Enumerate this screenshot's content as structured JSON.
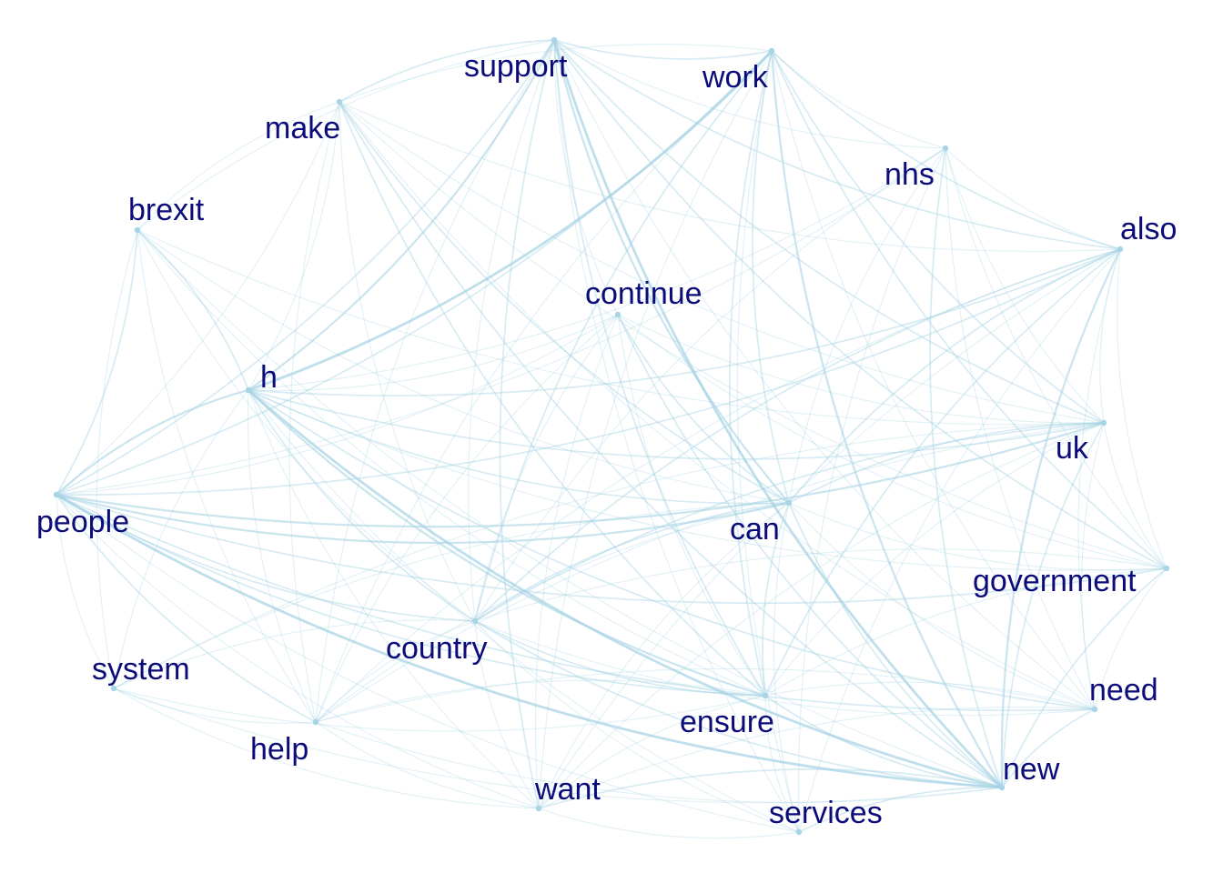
{
  "style": {
    "node_color": "#a9d4e6",
    "edge_color": "#a3d1e3",
    "label_color": "#0b0b7a",
    "background": "#ffffff"
  },
  "nodes": [
    {
      "id": "support",
      "label": "support"
    },
    {
      "id": "work",
      "label": "work"
    },
    {
      "id": "make",
      "label": "make"
    },
    {
      "id": "nhs",
      "label": "nhs"
    },
    {
      "id": "brexit",
      "label": "brexit"
    },
    {
      "id": "also",
      "label": "also"
    },
    {
      "id": "continue",
      "label": "continue"
    },
    {
      "id": "h",
      "label": "h"
    },
    {
      "id": "uk",
      "label": "uk"
    },
    {
      "id": "people",
      "label": "people"
    },
    {
      "id": "can",
      "label": "can"
    },
    {
      "id": "government",
      "label": "government"
    },
    {
      "id": "country",
      "label": "country"
    },
    {
      "id": "system",
      "label": "system"
    },
    {
      "id": "need",
      "label": "need"
    },
    {
      "id": "ensure",
      "label": "ensure"
    },
    {
      "id": "help",
      "label": "help"
    },
    {
      "id": "new",
      "label": "new"
    },
    {
      "id": "want",
      "label": "want"
    },
    {
      "id": "services",
      "label": "services"
    }
  ],
  "edges": [
    [
      "h",
      "work",
      4
    ],
    [
      "h",
      "support",
      3
    ],
    [
      "h",
      "new",
      4
    ],
    [
      "h",
      "people",
      3
    ],
    [
      "h",
      "ensure",
      3
    ],
    [
      "h",
      "can",
      2
    ],
    [
      "h",
      "uk",
      2
    ],
    [
      "h",
      "brexit",
      2
    ],
    [
      "h",
      "country",
      2
    ],
    [
      "h",
      "also",
      2
    ],
    [
      "h",
      "need",
      2
    ],
    [
      "h",
      "government",
      1
    ],
    [
      "h",
      "help",
      1
    ],
    [
      "h",
      "want",
      1
    ],
    [
      "h",
      "services",
      1
    ],
    [
      "h",
      "make",
      1
    ],
    [
      "h",
      "nhs",
      1
    ],
    [
      "h",
      "continue",
      1
    ],
    [
      "h",
      "system",
      1
    ],
    [
      "people",
      "new",
      4
    ],
    [
      "people",
      "can",
      3
    ],
    [
      "people",
      "uk",
      3
    ],
    [
      "people",
      "support",
      2
    ],
    [
      "people",
      "work",
      2
    ],
    [
      "people",
      "ensure",
      2
    ],
    [
      "people",
      "country",
      2
    ],
    [
      "people",
      "also",
      2
    ],
    [
      "people",
      "government",
      2
    ],
    [
      "people",
      "help",
      2
    ],
    [
      "people",
      "need",
      2
    ],
    [
      "people",
      "brexit",
      2
    ],
    [
      "people",
      "system",
      1
    ],
    [
      "people",
      "want",
      1
    ],
    [
      "people",
      "make",
      1
    ],
    [
      "people",
      "continue",
      1
    ],
    [
      "people",
      "nhs",
      1
    ],
    [
      "people",
      "services",
      1
    ],
    [
      "support",
      "new",
      4
    ],
    [
      "support",
      "can",
      3
    ],
    [
      "support",
      "ensure",
      2
    ],
    [
      "support",
      "make",
      2
    ],
    [
      "support",
      "work",
      2
    ],
    [
      "support",
      "want",
      2
    ],
    [
      "support",
      "uk",
      2
    ],
    [
      "support",
      "also",
      2
    ],
    [
      "support",
      "government",
      2
    ],
    [
      "support",
      "country",
      1
    ],
    [
      "support",
      "need",
      1
    ],
    [
      "support",
      "help",
      1
    ],
    [
      "support",
      "brexit",
      1
    ],
    [
      "support",
      "nhs",
      1
    ],
    [
      "support",
      "services",
      1
    ],
    [
      "support",
      "continue",
      1
    ],
    [
      "work",
      "new",
      3
    ],
    [
      "work",
      "can",
      2
    ],
    [
      "work",
      "country",
      2
    ],
    [
      "work",
      "uk",
      2
    ],
    [
      "work",
      "also",
      2
    ],
    [
      "work",
      "government",
      2
    ],
    [
      "work",
      "ensure",
      2
    ],
    [
      "work",
      "services",
      1
    ],
    [
      "work",
      "need",
      1
    ],
    [
      "work",
      "help",
      1
    ],
    [
      "work",
      "nhs",
      1
    ],
    [
      "work",
      "want",
      1
    ],
    [
      "work",
      "make",
      1
    ],
    [
      "make",
      "new",
      2
    ],
    [
      "make",
      "can",
      2
    ],
    [
      "make",
      "ensure",
      2
    ],
    [
      "make",
      "brexit",
      1
    ],
    [
      "make",
      "uk",
      1
    ],
    [
      "make",
      "country",
      1
    ],
    [
      "make",
      "also",
      1
    ],
    [
      "make",
      "help",
      1
    ],
    [
      "make",
      "need",
      1
    ],
    [
      "make",
      "government",
      1
    ],
    [
      "nhs",
      "new",
      2
    ],
    [
      "nhs",
      "can",
      1
    ],
    [
      "nhs",
      "also",
      1
    ],
    [
      "nhs",
      "uk",
      1
    ],
    [
      "nhs",
      "services",
      1
    ],
    [
      "nhs",
      "need",
      1
    ],
    [
      "nhs",
      "government",
      1
    ],
    [
      "nhs",
      "country",
      1
    ],
    [
      "brexit",
      "new",
      1
    ],
    [
      "brexit",
      "country",
      1
    ],
    [
      "brexit",
      "can",
      1
    ],
    [
      "brexit",
      "system",
      1
    ],
    [
      "brexit",
      "help",
      1
    ],
    [
      "brexit",
      "uk",
      1
    ],
    [
      "brexit",
      "ensure",
      1
    ],
    [
      "also",
      "new",
      3
    ],
    [
      "also",
      "can",
      2
    ],
    [
      "also",
      "ensure",
      2
    ],
    [
      "also",
      "country",
      2
    ],
    [
      "also",
      "need",
      1
    ],
    [
      "also",
      "uk",
      1
    ],
    [
      "also",
      "government",
      1
    ],
    [
      "also",
      "help",
      1
    ],
    [
      "also",
      "want",
      1
    ],
    [
      "also",
      "services",
      1
    ],
    [
      "continue",
      "can",
      2
    ],
    [
      "continue",
      "new",
      2
    ],
    [
      "continue",
      "country",
      1
    ],
    [
      "continue",
      "ensure",
      1
    ],
    [
      "continue",
      "want",
      1
    ],
    [
      "continue",
      "uk",
      1
    ],
    [
      "continue",
      "government",
      1
    ],
    [
      "continue",
      "help",
      1
    ],
    [
      "uk",
      "new",
      2
    ],
    [
      "uk",
      "can",
      2
    ],
    [
      "uk",
      "country",
      2
    ],
    [
      "uk",
      "government",
      1
    ],
    [
      "uk",
      "ensure",
      1
    ],
    [
      "uk",
      "need",
      1
    ],
    [
      "uk",
      "help",
      1
    ],
    [
      "uk",
      "system",
      1
    ],
    [
      "uk",
      "want",
      1
    ],
    [
      "can",
      "new",
      2
    ],
    [
      "can",
      "ensure",
      2
    ],
    [
      "can",
      "country",
      2
    ],
    [
      "can",
      "help",
      1
    ],
    [
      "can",
      "government",
      1
    ],
    [
      "can",
      "need",
      1
    ],
    [
      "can",
      "want",
      1
    ],
    [
      "can",
      "services",
      1
    ],
    [
      "can",
      "system",
      1
    ],
    [
      "government",
      "new",
      2
    ],
    [
      "government",
      "need",
      1
    ],
    [
      "government",
      "ensure",
      1
    ],
    [
      "government",
      "country",
      1
    ],
    [
      "country",
      "ensure",
      2
    ],
    [
      "country",
      "new",
      2
    ],
    [
      "country",
      "help",
      1
    ],
    [
      "country",
      "want",
      1
    ],
    [
      "country",
      "need",
      1
    ],
    [
      "country",
      "system",
      1
    ],
    [
      "country",
      "services",
      1
    ],
    [
      "system",
      "help",
      1
    ],
    [
      "system",
      "ensure",
      1
    ],
    [
      "system",
      "new",
      1
    ],
    [
      "system",
      "want",
      1
    ],
    [
      "need",
      "new",
      2
    ],
    [
      "need",
      "ensure",
      1
    ],
    [
      "need",
      "want",
      1
    ],
    [
      "need",
      "help",
      1
    ],
    [
      "ensure",
      "new",
      2
    ],
    [
      "ensure",
      "help",
      1
    ],
    [
      "ensure",
      "want",
      1
    ],
    [
      "ensure",
      "services",
      1
    ],
    [
      "help",
      "new",
      1
    ],
    [
      "help",
      "want",
      1
    ],
    [
      "new",
      "want",
      2
    ],
    [
      "new",
      "services",
      2
    ],
    [
      "want",
      "services",
      1
    ]
  ]
}
